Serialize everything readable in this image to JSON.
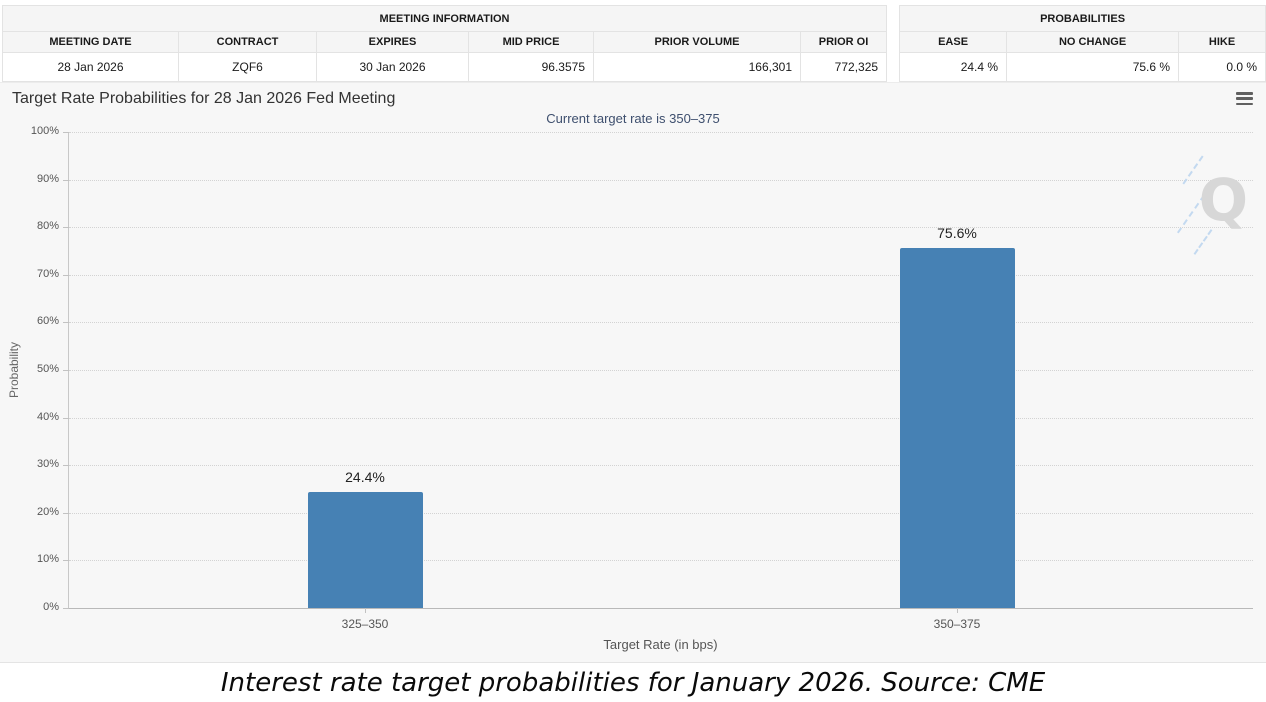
{
  "meeting_info": {
    "title": "MEETING INFORMATION",
    "columns": [
      "MEETING DATE",
      "CONTRACT",
      "EXPIRES",
      "MID PRICE",
      "PRIOR VOLUME",
      "PRIOR OI"
    ],
    "values": [
      "28 Jan 2026",
      "ZQF6",
      "30 Jan 2026",
      "96.3575",
      "166,301",
      "772,325"
    ]
  },
  "probabilities": {
    "title": "PROBABILITIES",
    "columns": [
      "EASE",
      "NO CHANGE",
      "HIKE"
    ],
    "values": [
      "24.4 %",
      "75.6 %",
      "0.0 %"
    ]
  },
  "chart": {
    "title": "Target Rate Probabilities for 28 Jan 2026 Fed Meeting",
    "subtitle": "Current target rate is 350–375",
    "subtitle_color": "#3e4f6e",
    "watermark": "Q",
    "menu_icon": "hamburger-icon"
  },
  "chart_data": {
    "type": "bar",
    "title": "Target Rate Probabilities for 28 Jan 2026 Fed Meeting",
    "subtitle": "Current target rate is 350–375",
    "categories": [
      "325–350",
      "350–375"
    ],
    "values": [
      24.4,
      75.6
    ],
    "value_labels": [
      "24.4%",
      "75.6%"
    ],
    "xlabel": "Target Rate (in bps)",
    "ylabel": "Probability",
    "ylim": [
      0,
      100
    ],
    "ytick_step": 10,
    "ytick_suffix": "%",
    "grid": "dotted",
    "legend": "none",
    "bar_color": "#4681b4"
  },
  "caption": "Interest rate target probabilities for January 2026. Source: CME"
}
